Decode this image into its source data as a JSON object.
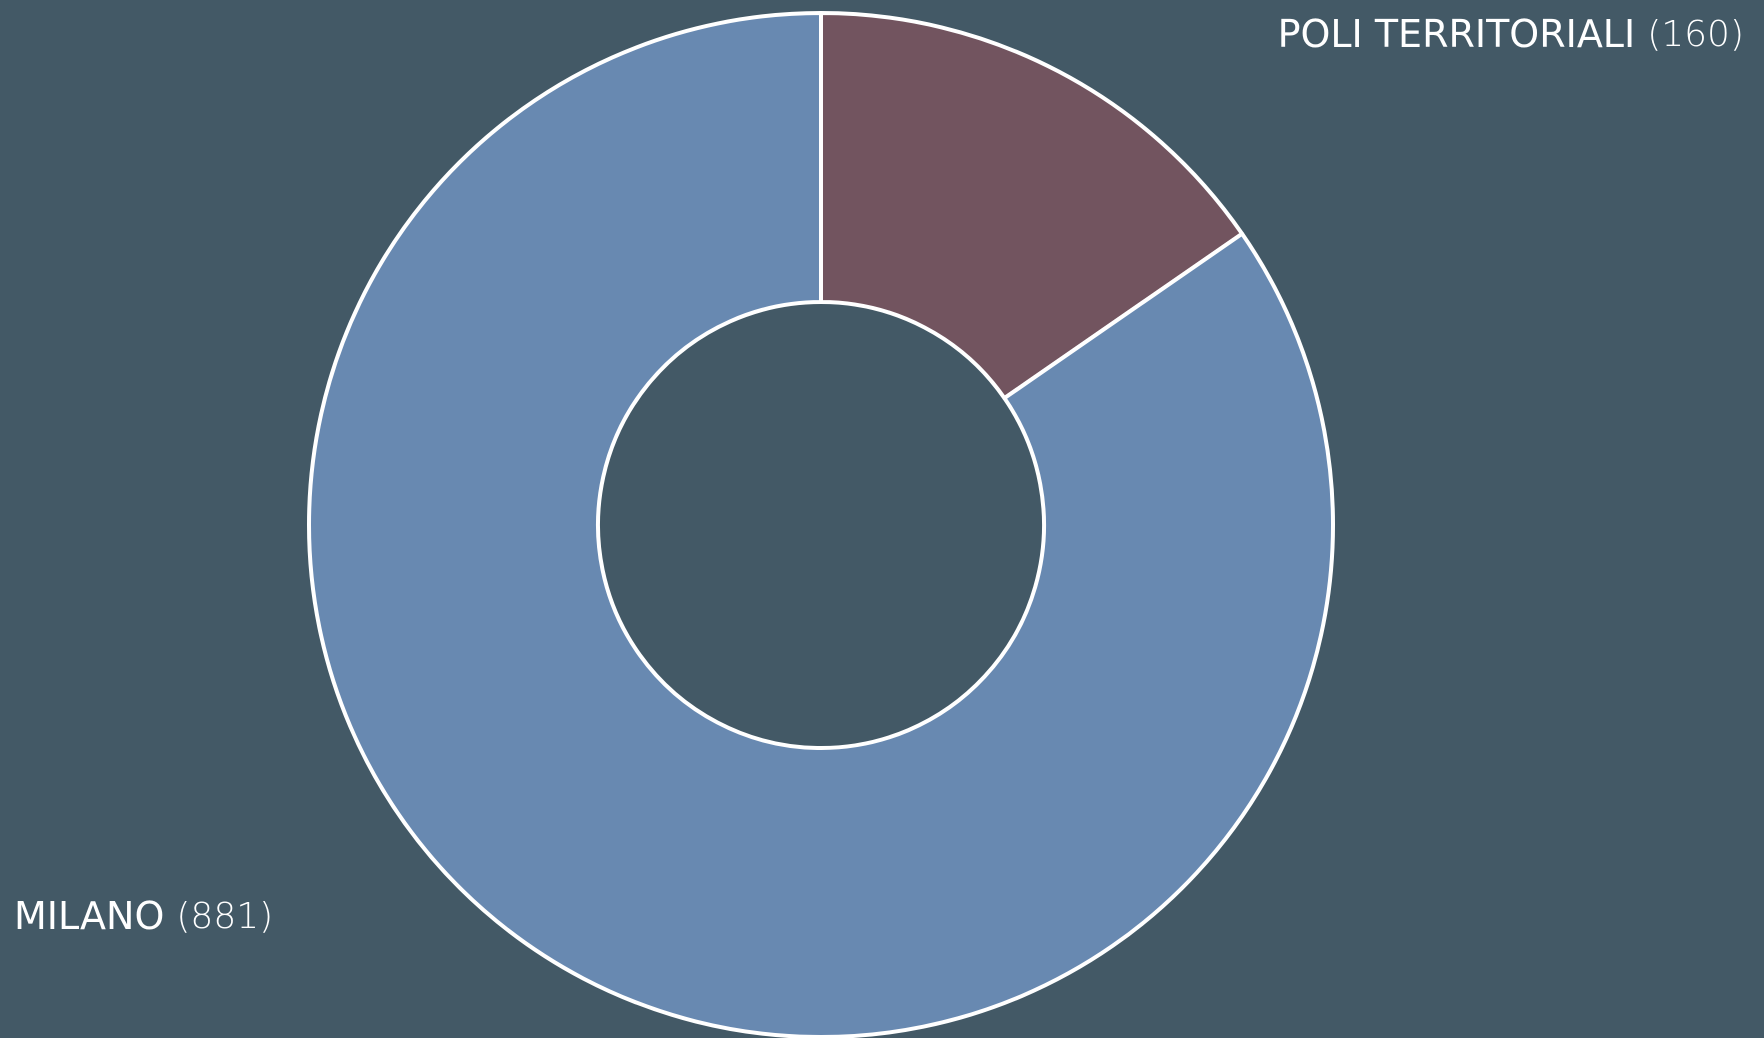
{
  "chart_data": {
    "type": "donut",
    "categories": [
      "POLI TERRITORIALI",
      "MILANO"
    ],
    "values": [
      160,
      881
    ],
    "value_labels": [
      "(160)",
      "(881)"
    ],
    "colors": [
      "#72545f",
      "#6889b1"
    ]
  }
}
